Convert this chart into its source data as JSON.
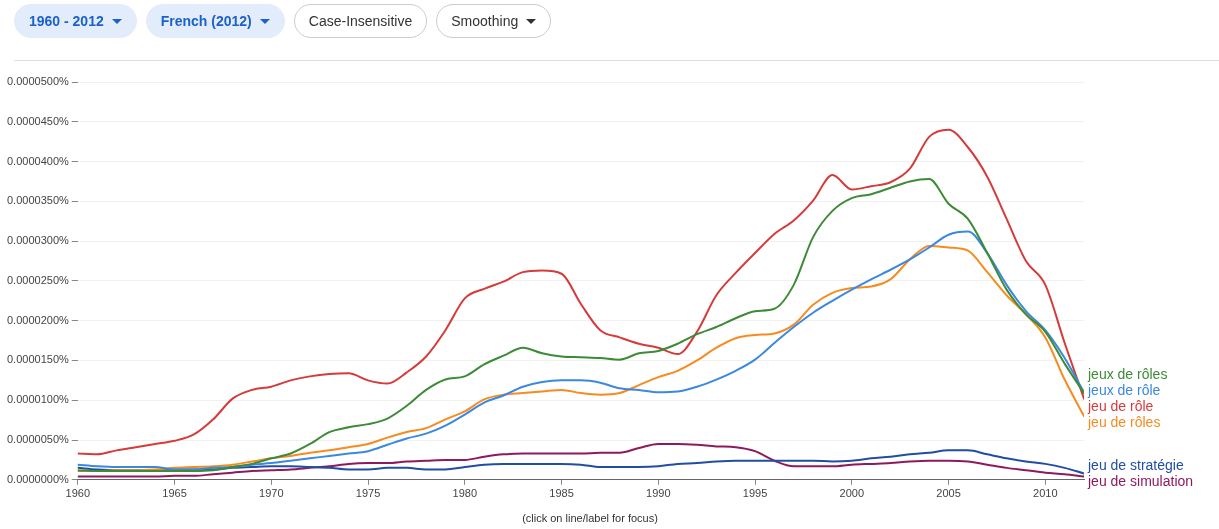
{
  "chart_data": {
    "type": "line",
    "x": [
      1960,
      1961,
      1962,
      1963,
      1964,
      1965,
      1966,
      1967,
      1968,
      1969,
      1970,
      1971,
      1972,
      1973,
      1974,
      1975,
      1976,
      1977,
      1978,
      1979,
      1980,
      1981,
      1982,
      1983,
      1984,
      1985,
      1986,
      1987,
      1988,
      1989,
      1990,
      1991,
      1992,
      1993,
      1994,
      1995,
      1996,
      1997,
      1998,
      1999,
      2000,
      2001,
      2002,
      2003,
      2004,
      2005,
      2006,
      2007,
      2008,
      2009,
      2010,
      2011,
      2012
    ],
    "series": [
      {
        "name": "jeux de rôles",
        "color": "#3d8b37",
        "values": [
          1.2e-06,
          1.1e-06,
          1.1e-06,
          1.1e-06,
          1.1e-06,
          1.1e-06,
          1.1e-06,
          1.2e-06,
          1.6e-06,
          2e-06,
          2.7e-06,
          3.3e-06,
          4.5e-06,
          6e-06,
          6.6e-06,
          7e-06,
          7.7e-06,
          9.3e-06,
          1.13e-05,
          1.26e-05,
          1.3e-05,
          1.45e-05,
          1.56e-05,
          1.66e-05,
          1.59e-05,
          1.55e-05,
          1.54e-05,
          1.53e-05,
          1.51e-05,
          1.59e-05,
          1.62e-05,
          1.71e-05,
          1.83e-05,
          1.92e-05,
          2.03e-05,
          2.12e-05,
          2.15e-05,
          2.45e-05,
          3.05e-05,
          3.38e-05,
          3.54e-05,
          3.59e-05,
          3.67e-05,
          3.75e-05,
          3.78e-05,
          3.47e-05,
          3.28e-05,
          2.85e-05,
          2.39e-05,
          2.08e-05,
          1.86e-05,
          1.46e-05,
          1.09e-05
        ]
      },
      {
        "name": "jeux de rôle",
        "color": "#3b88e0",
        "values": [
          1.9e-06,
          1.7e-06,
          1.6e-06,
          1.6e-06,
          1.6e-06,
          1.3e-06,
          1.3e-06,
          1.5e-06,
          1.6e-06,
          1.9e-06,
          2.1e-06,
          2.4e-06,
          2.7e-06,
          3e-06,
          3.3e-06,
          3.6e-06,
          4.4e-06,
          5.2e-06,
          5.8e-06,
          6.8e-06,
          8.2e-06,
          9.7e-06,
          1.06e-05,
          1.17e-05,
          1.23e-05,
          1.25e-05,
          1.25e-05,
          1.22e-05,
          1.15e-05,
          1.13e-05,
          1.1e-05,
          1.11e-05,
          1.17e-05,
          1.26e-05,
          1.37e-05,
          1.51e-05,
          1.72e-05,
          1.92e-05,
          2.1e-05,
          2.25e-05,
          2.39e-05,
          2.52e-05,
          2.64e-05,
          2.77e-05,
          2.92e-05,
          3.08e-05,
          3.12e-05,
          2.85e-05,
          2.45e-05,
          2.12e-05,
          1.88e-05,
          1.53e-05,
          1.1e-05
        ]
      },
      {
        "name": "jeu de rôle",
        "color": "#d63b3b",
        "values": [
          3.3e-06,
          3.2e-06,
          3.7e-06,
          4.1e-06,
          4.5e-06,
          4.9e-06,
          5.7e-06,
          7.6e-06,
          1.02e-05,
          1.13e-05,
          1.17e-05,
          1.25e-05,
          1.3e-05,
          1.33e-05,
          1.34e-05,
          1.25e-05,
          1.21e-05,
          1.35e-05,
          1.55e-05,
          1.88e-05,
          2.28e-05,
          2.4e-05,
          2.49e-05,
          2.61e-05,
          2.63e-05,
          2.59e-05,
          2.21e-05,
          1.88e-05,
          1.79e-05,
          1.71e-05,
          1.66e-05,
          1.58e-05,
          1.86e-05,
          2.32e-05,
          2.6e-05,
          2.85e-05,
          3.09e-05,
          3.26e-05,
          3.51e-05,
          3.83e-05,
          3.65e-05,
          3.69e-05,
          3.74e-05,
          3.91e-05,
          4.31e-05,
          4.4e-05,
          4.18e-05,
          3.81e-05,
          3.28e-05,
          2.75e-05,
          2.45e-05,
          1.72e-05,
          1.02e-05
        ]
      },
      {
        "name": "jeu de rôles",
        "color": "#f78b1f",
        "values": [
          1.1e-06,
          1.1e-06,
          1.2e-06,
          1.2e-06,
          1.3e-06,
          1.5e-06,
          1.6e-06,
          1.7e-06,
          1.9e-06,
          2.3e-06,
          2.7e-06,
          3e-06,
          3.4e-06,
          3.7e-06,
          4.1e-06,
          4.5e-06,
          5.3e-06,
          6e-06,
          6.5e-06,
          7.6e-06,
          8.6e-06,
          1.01e-05,
          1.07e-05,
          1.09e-05,
          1.11e-05,
          1.13e-05,
          1.09e-05,
          1.07e-05,
          1.09e-05,
          1.19e-05,
          1.29e-05,
          1.37e-05,
          1.5e-05,
          1.66e-05,
          1.78e-05,
          1.82e-05,
          1.84e-05,
          1.95e-05,
          2.2e-05,
          2.35e-05,
          2.41e-05,
          2.43e-05,
          2.52e-05,
          2.77e-05,
          2.94e-05,
          2.92e-05,
          2.88e-05,
          2.61e-05,
          2.32e-05,
          2.08e-05,
          1.79e-05,
          1.26e-05,
          8e-06
        ]
      },
      {
        "name": "jeu de stratégie",
        "color": "#214ea3",
        "values": [
          1.5e-06,
          1.3e-06,
          1.2e-06,
          1.2e-06,
          1.2e-06,
          1.3e-06,
          1.3e-06,
          1.3e-06,
          1.5e-06,
          1.6e-06,
          1.7e-06,
          1.7e-06,
          1.6e-06,
          1.5e-06,
          1.3e-06,
          1.3e-06,
          1.5e-06,
          1.5e-06,
          1.3e-06,
          1.3e-06,
          1.6e-06,
          1.9e-06,
          2e-06,
          2e-06,
          2e-06,
          2e-06,
          1.9e-06,
          1.6e-06,
          1.6e-06,
          1.6e-06,
          1.7e-06,
          2e-06,
          2.1e-06,
          2.3e-06,
          2.4e-06,
          2.4e-06,
          2.4e-06,
          2.4e-06,
          2.4e-06,
          2.3e-06,
          2.4e-06,
          2.7e-06,
          2.9e-06,
          3.2e-06,
          3.4e-06,
          3.7e-06,
          3.7e-06,
          3.2e-06,
          2.7e-06,
          2.3e-06,
          2e-06,
          1.5e-06,
          8e-07
        ]
      },
      {
        "name": "jeu de simulation",
        "color": "#8e1a5e",
        "values": [
          4e-07,
          4e-07,
          4e-07,
          4e-07,
          4e-07,
          5e-07,
          5e-07,
          7e-07,
          9e-07,
          1.1e-06,
          1.2e-06,
          1.3e-06,
          1.5e-06,
          1.7e-06,
          2e-06,
          2.1e-06,
          2.1e-06,
          2.3e-06,
          2.4e-06,
          2.5e-06,
          2.5e-06,
          2.9e-06,
          3.2e-06,
          3.3e-06,
          3.3e-06,
          3.3e-06,
          3.3e-06,
          3.4e-06,
          3.4e-06,
          4e-06,
          4.5e-06,
          4.5e-06,
          4.4e-06,
          4.2e-06,
          4.1e-06,
          3.6e-06,
          2.4e-06,
          1.7e-06,
          1.7e-06,
          1.7e-06,
          1.9e-06,
          2e-06,
          2.1e-06,
          2.3e-06,
          2.4e-06,
          2.4e-06,
          2.3e-06,
          1.9e-06,
          1.5e-06,
          1.2e-06,
          9e-07,
          7e-07,
          4e-07
        ]
      }
    ],
    "xlim": [
      1960,
      2012
    ],
    "xticks": [
      1960,
      1965,
      1970,
      1975,
      1980,
      1985,
      1990,
      1995,
      2000,
      2005,
      2010
    ],
    "ylim": [
      0,
      5e-05
    ],
    "yticks": [
      {
        "value": 0,
        "label": "0.0000000%"
      },
      {
        "value": 5e-06,
        "label": "0.0000050%"
      },
      {
        "value": 1e-05,
        "label": "0.0000100%"
      },
      {
        "value": 1.5e-05,
        "label": "0.0000150%"
      },
      {
        "value": 2e-05,
        "label": "0.0000200%"
      },
      {
        "value": 2.5e-05,
        "label": "0.0000250%"
      },
      {
        "value": 3e-05,
        "label": "0.0000300%"
      },
      {
        "value": 3.5e-05,
        "label": "0.0000350%"
      },
      {
        "value": 4e-05,
        "label": "0.0000400%"
      },
      {
        "value": 4.5e-05,
        "label": "0.0000450%"
      },
      {
        "value": 5e-05,
        "label": "0.0000500%"
      }
    ],
    "grid": "y",
    "legend": false,
    "annotations": [
      "1960 - 2012",
      "French (2012)",
      "Case-Insensitive",
      "Smoothing",
      "(click on line/label for focus)"
    ]
  }
}
